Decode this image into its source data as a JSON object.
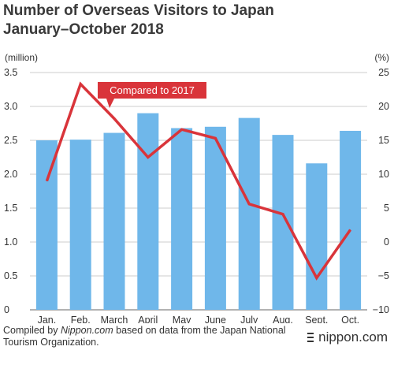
{
  "title_line1": "Number of Overseas Visitors to Japan",
  "title_line2": "January–October 2018",
  "footer": {
    "prefix": "Compiled by ",
    "source_name": "Nippon.com",
    "suffix": " based on data from the Japan National Tourism Organization."
  },
  "brand": "nippon.com",
  "colors": {
    "bar": "#6fb7ea",
    "line": "#d9343a",
    "grid": "#cccccc",
    "axis": "#666666"
  },
  "chart_data": {
    "type": "bar",
    "categories": [
      "Jan.",
      "Feb.",
      "March",
      "April",
      "May",
      "June",
      "July",
      "Aug.",
      "Sept.",
      "Oct."
    ],
    "series": [
      {
        "type": "bar",
        "axis": "left",
        "values": [
          2.5,
          2.51,
          2.61,
          2.9,
          2.68,
          2.7,
          2.83,
          2.58,
          2.16,
          2.64
        ]
      },
      {
        "type": "line",
        "axis": "right",
        "name": "Compared to 2017",
        "values": [
          9.0,
          23.3,
          18.2,
          12.5,
          16.6,
          15.3,
          5.6,
          4.1,
          -5.3,
          1.8
        ]
      }
    ],
    "y_left": {
      "label": "(million)",
      "lim": [
        0,
        3.5
      ],
      "ticks": [
        "0",
        "0.5",
        "1.0",
        "1.5",
        "2.0",
        "2.5",
        "3.0",
        "3.5"
      ]
    },
    "y_right": {
      "label": "(%)",
      "lim": [
        -10,
        25
      ],
      "ticks": [
        "−10",
        "−5",
        "0",
        "5",
        "10",
        "15",
        "20",
        "25"
      ]
    },
    "grid": true
  }
}
